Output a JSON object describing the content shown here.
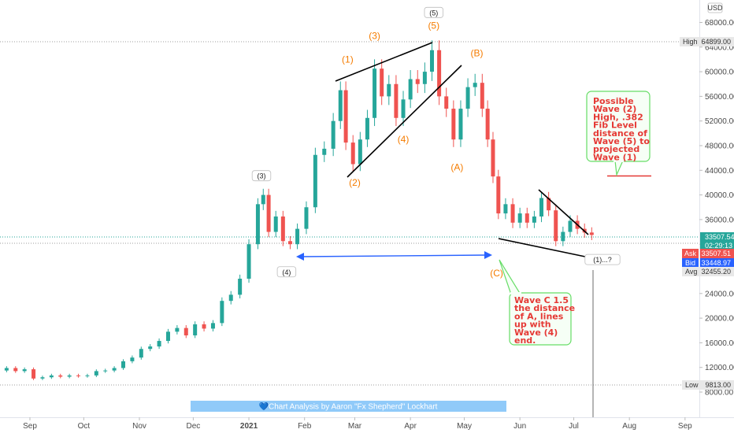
{
  "currency": "USD",
  "banner": "💙Chart Analysis by Aaron \"Fx Shepherd\" Lockhart",
  "price_labels": {
    "high": {
      "label": "High",
      "value": "64899.00"
    },
    "low": {
      "label": "Low",
      "value": "9813.00"
    },
    "last": {
      "value": "33507.54",
      "countdown": "02:29:13"
    },
    "ask": {
      "label": "Ask",
      "value": "33507.51"
    },
    "bid": {
      "label": "Bid",
      "value": "33448.97"
    },
    "avg": {
      "label": "Avg",
      "value": "32455.20"
    }
  },
  "wave_labels": [
    {
      "text": "(1)",
      "style": "orange",
      "date": "2021-02-25",
      "price": 61500
    },
    {
      "text": "(2)",
      "style": "orange",
      "date": "2021-03-01",
      "price": 41500
    },
    {
      "text": "(3)",
      "style": "orange",
      "date": "2021-03-12",
      "price": 65300
    },
    {
      "text": "(4)",
      "style": "orange",
      "date": "2021-03-28",
      "price": 48500
    },
    {
      "text": "(5)",
      "style": "orange",
      "date": "2021-04-14",
      "price": 67000
    },
    {
      "text": "(5)",
      "style": "black",
      "date": "2021-04-14",
      "price": 69300
    },
    {
      "text": "(A)",
      "style": "orange",
      "date": "2021-04-27",
      "price": 44000
    },
    {
      "text": "(B)",
      "style": "orange",
      "date": "2021-05-08",
      "price": 62500
    },
    {
      "text": "(C)",
      "style": "orange",
      "date": "2021-05-19",
      "price": 26800
    },
    {
      "text": "(3)",
      "style": "black",
      "date": "2021-01-08",
      "price": 42800
    },
    {
      "text": "(4)",
      "style": "black",
      "date": "2021-01-22",
      "price": 27200
    },
    {
      "text": "(1)...?",
      "style": "black",
      "date": "2021-07-17",
      "price": 29200
    }
  ],
  "annotations": [
    {
      "id": "wave2",
      "lines": [
        "Possible",
        "Wave (2)",
        "High, .382",
        "Fib Level",
        "distance of",
        "Wave (5) to",
        "projected",
        "Wave (1)"
      ]
    },
    {
      "id": "wavec",
      "lines": [
        "Wave C 1.5",
        "the distance",
        "of A, lines",
        "up with",
        "Wave (4)",
        "end."
      ]
    }
  ],
  "colors": {
    "up": "#26a69a",
    "down": "#ef5350",
    "wave_label": "#f57c00",
    "annotation_text": "#e53935",
    "annotation_border": "#66dd66",
    "annotation_fill": "#f6fff6",
    "arrow": "#2962ff",
    "banner": "#90caf9",
    "ask": "#ef5350",
    "bid": "#2962ff",
    "last": "#26a69a"
  },
  "chart_data": {
    "type": "candlestick",
    "title": "",
    "x_ticks": [
      "Sep",
      "Oct",
      "Nov",
      "Dec",
      "2021",
      "Feb",
      "Mar",
      "Apr",
      "May",
      "Jun",
      "Jul",
      "Aug",
      "Sep"
    ],
    "y_ticks": [
      "8000.00",
      "12000.00",
      "16000.00",
      "20000.00",
      "24000.00",
      "28000.00",
      "32000.00",
      "36000.00",
      "40000.00",
      "44000.00",
      "48000.00",
      "52000.00",
      "56000.00",
      "60000.00",
      "64000.00",
      "68000.00"
    ],
    "ylim": [
      5000,
      71000
    ],
    "xlim": [
      "2020-08-14",
      "2021-09-12"
    ],
    "series": [
      {
        "date": "2020-08-14",
        "open": 11800,
        "close": 11500
      },
      {
        "date": "2020-08-19",
        "open": 11500,
        "close": 11900
      },
      {
        "date": "2020-08-24",
        "open": 11900,
        "close": 11400
      },
      {
        "date": "2020-08-29",
        "open": 11400,
        "close": 11700
      },
      {
        "date": "2020-09-03",
        "open": 11700,
        "close": 10200
      },
      {
        "date": "2020-09-08",
        "open": 10200,
        "close": 10400
      },
      {
        "date": "2020-09-13",
        "open": 10400,
        "close": 10700
      },
      {
        "date": "2020-09-18",
        "open": 10700,
        "close": 10500
      },
      {
        "date": "2020-09-23",
        "open": 10500,
        "close": 10700
      },
      {
        "date": "2020-09-28",
        "open": 10700,
        "close": 10600
      },
      {
        "date": "2020-10-03",
        "open": 10600,
        "close": 10700
      },
      {
        "date": "2020-10-08",
        "open": 10700,
        "close": 11400
      },
      {
        "date": "2020-10-13",
        "open": 11400,
        "close": 11500
      },
      {
        "date": "2020-10-18",
        "open": 11500,
        "close": 11900
      },
      {
        "date": "2020-10-23",
        "open": 11900,
        "close": 13000
      },
      {
        "date": "2020-10-28",
        "open": 13000,
        "close": 13600
      },
      {
        "date": "2020-11-02",
        "open": 13600,
        "close": 15000
      },
      {
        "date": "2020-11-07",
        "open": 15000,
        "close": 15400
      },
      {
        "date": "2020-11-12",
        "open": 15400,
        "close": 16300
      },
      {
        "date": "2020-11-17",
        "open": 16300,
        "close": 17800
      },
      {
        "date": "2020-11-22",
        "open": 17800,
        "close": 18400
      },
      {
        "date": "2020-11-27",
        "open": 18400,
        "close": 17200
      },
      {
        "date": "2020-12-02",
        "open": 17200,
        "close": 19000
      },
      {
        "date": "2020-12-07",
        "open": 19000,
        "close": 18300
      },
      {
        "date": "2020-12-12",
        "open": 18300,
        "close": 19200
      },
      {
        "date": "2020-12-17",
        "open": 19200,
        "close": 22800
      },
      {
        "date": "2020-12-22",
        "open": 22800,
        "close": 23800
      },
      {
        "date": "2020-12-27",
        "open": 23800,
        "close": 26400
      },
      {
        "date": "2021-01-01",
        "open": 26400,
        "close": 32000
      },
      {
        "date": "2021-01-06",
        "open": 32000,
        "close": 38500
      },
      {
        "date": "2021-01-09",
        "open": 38500,
        "close": 40000
      },
      {
        "date": "2021-01-12",
        "open": 40000,
        "close": 34000
      },
      {
        "date": "2021-01-16",
        "open": 34000,
        "close": 36500
      },
      {
        "date": "2021-01-20",
        "open": 36500,
        "close": 32500
      },
      {
        "date": "2021-01-24",
        "open": 32500,
        "close": 32000
      },
      {
        "date": "2021-01-28",
        "open": 32000,
        "close": 34500
      },
      {
        "date": "2021-02-02",
        "open": 34500,
        "close": 38000
      },
      {
        "date": "2021-02-07",
        "open": 38000,
        "close": 46500
      },
      {
        "date": "2021-02-12",
        "open": 46500,
        "close": 47500
      },
      {
        "date": "2021-02-17",
        "open": 47500,
        "close": 52000
      },
      {
        "date": "2021-02-21",
        "open": 52000,
        "close": 57000
      },
      {
        "date": "2021-02-24",
        "open": 57000,
        "close": 48500
      },
      {
        "date": "2021-02-28",
        "open": 48500,
        "close": 45000
      },
      {
        "date": "2021-03-04",
        "open": 45000,
        "close": 49000
      },
      {
        "date": "2021-03-08",
        "open": 49000,
        "close": 52500
      },
      {
        "date": "2021-03-12",
        "open": 52500,
        "close": 60500
      },
      {
        "date": "2021-03-16",
        "open": 60500,
        "close": 56000
      },
      {
        "date": "2021-03-20",
        "open": 56000,
        "close": 58000
      },
      {
        "date": "2021-03-24",
        "open": 58000,
        "close": 52500
      },
      {
        "date": "2021-03-28",
        "open": 52500,
        "close": 55500
      },
      {
        "date": "2021-04-01",
        "open": 55500,
        "close": 58800
      },
      {
        "date": "2021-04-05",
        "open": 58800,
        "close": 58000
      },
      {
        "date": "2021-04-09",
        "open": 58000,
        "close": 60000
      },
      {
        "date": "2021-04-13",
        "open": 60000,
        "close": 63500
      },
      {
        "date": "2021-04-17",
        "open": 63500,
        "close": 56000
      },
      {
        "date": "2021-04-21",
        "open": 56000,
        "close": 54000
      },
      {
        "date": "2021-04-25",
        "open": 54000,
        "close": 49000
      },
      {
        "date": "2021-04-29",
        "open": 49000,
        "close": 54000
      },
      {
        "date": "2021-05-03",
        "open": 54000,
        "close": 57500
      },
      {
        "date": "2021-05-07",
        "open": 57500,
        "close": 58200
      },
      {
        "date": "2021-05-11",
        "open": 58200,
        "close": 54000
      },
      {
        "date": "2021-05-14",
        "open": 54000,
        "close": 49000
      },
      {
        "date": "2021-05-17",
        "open": 49000,
        "close": 43000
      },
      {
        "date": "2021-05-20",
        "open": 43000,
        "close": 37000
      },
      {
        "date": "2021-05-24",
        "open": 37000,
        "close": 38500
      },
      {
        "date": "2021-05-28",
        "open": 38500,
        "close": 35500
      },
      {
        "date": "2021-06-01",
        "open": 35500,
        "close": 37000
      },
      {
        "date": "2021-06-05",
        "open": 37000,
        "close": 35500
      },
      {
        "date": "2021-06-09",
        "open": 35500,
        "close": 36500
      },
      {
        "date": "2021-06-13",
        "open": 36500,
        "close": 39500
      },
      {
        "date": "2021-06-17",
        "open": 39500,
        "close": 37500
      },
      {
        "date": "2021-06-21",
        "open": 37500,
        "close": 32500
      },
      {
        "date": "2021-06-25",
        "open": 32500,
        "close": 34000
      },
      {
        "date": "2021-06-29",
        "open": 34000,
        "close": 35800
      },
      {
        "date": "2021-07-03",
        "open": 35800,
        "close": 34500
      },
      {
        "date": "2021-07-07",
        "open": 34500,
        "close": 33900
      },
      {
        "date": "2021-07-11",
        "open": 33900,
        "close": 33500
      }
    ]
  }
}
